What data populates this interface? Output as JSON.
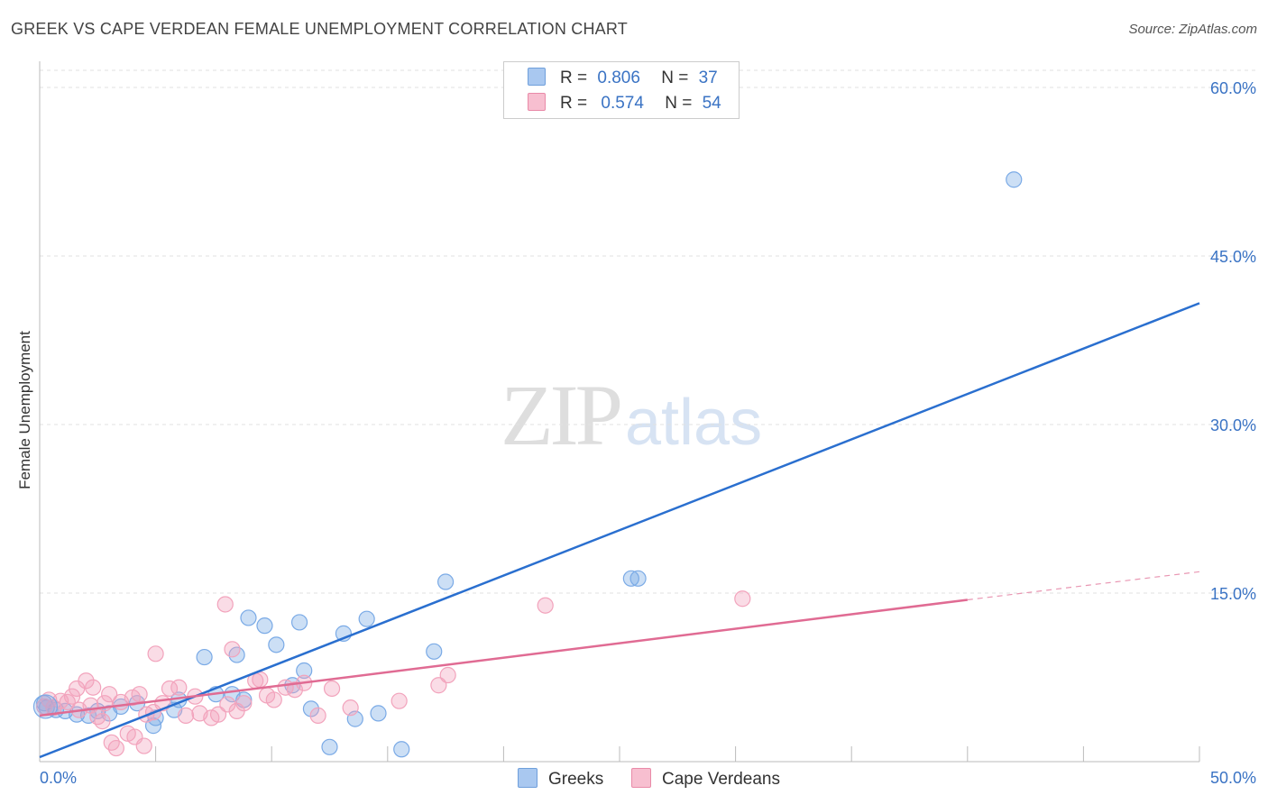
{
  "title": "GREEK VS CAPE VERDEAN FEMALE UNEMPLOYMENT CORRELATION CHART",
  "source": "Source: ZipAtlas.com",
  "watermark": {
    "zip": "ZIP",
    "atlas": "atlas"
  },
  "legend": {
    "rows": [
      {
        "r_label": "R =",
        "r_value": "0.806",
        "n_label": "N =",
        "n_value": "37",
        "color": "#a9c8f0",
        "border": "#6f9fdb"
      },
      {
        "r_label": "R =",
        "r_value": "0.574",
        "n_label": "N =",
        "n_value": "54",
        "color": "#f7bfd0",
        "border": "#e98aa8"
      }
    ]
  },
  "bottom_legend": [
    {
      "label": "Greeks",
      "color": "#a9c8f0",
      "border": "#6f9fdb"
    },
    {
      "label": "Cape Verdeans",
      "color": "#f7bfd0",
      "border": "#e98aa8"
    }
  ],
  "chart_data": {
    "type": "scatter",
    "title": "GREEK VS CAPE VERDEAN FEMALE UNEMPLOYMENT CORRELATION CHART",
    "xlabel": "",
    "ylabel": "Female Unemployment",
    "xlim": [
      0,
      50
    ],
    "ylim": [
      0,
      60
    ],
    "x_tick_labels": [
      "0.0%",
      "50.0%"
    ],
    "y_ticks": [
      15,
      30,
      45,
      60
    ],
    "y_tick_labels": [
      "15.0%",
      "30.0%",
      "45.0%",
      "60.0%"
    ],
    "grid": true,
    "series": [
      {
        "name": "Greeks",
        "color": "#7aaae6",
        "line_color": "#2a6fcf",
        "trend": {
          "x": [
            0,
            50
          ],
          "y": [
            0.4,
            40.8
          ]
        },
        "points": [
          [
            0.3,
            4.8
          ],
          [
            0.7,
            4.6
          ],
          [
            1.1,
            4.5
          ],
          [
            1.6,
            4.2
          ],
          [
            2.1,
            4.1
          ],
          [
            2.5,
            4.5
          ],
          [
            3.0,
            4.3
          ],
          [
            3.5,
            4.9
          ],
          [
            4.2,
            5.2
          ],
          [
            5.0,
            3.9
          ],
          [
            5.8,
            4.6
          ],
          [
            6.0,
            5.5
          ],
          [
            7.1,
            9.3
          ],
          [
            7.6,
            6.0
          ],
          [
            8.3,
            6.0
          ],
          [
            8.5,
            9.5
          ],
          [
            8.8,
            5.5
          ],
          [
            9.0,
            12.8
          ],
          [
            9.7,
            12.1
          ],
          [
            10.2,
            10.4
          ],
          [
            10.9,
            6.8
          ],
          [
            11.2,
            12.4
          ],
          [
            11.4,
            8.1
          ],
          [
            11.7,
            4.7
          ],
          [
            12.5,
            1.3
          ],
          [
            13.1,
            11.4
          ],
          [
            13.6,
            3.8
          ],
          [
            14.1,
            12.7
          ],
          [
            14.6,
            4.3
          ],
          [
            15.6,
            1.1
          ],
          [
            17.0,
            9.8
          ],
          [
            17.5,
            16.0
          ],
          [
            25.5,
            16.3
          ],
          [
            25.8,
            16.3
          ],
          [
            42.0,
            51.8
          ],
          [
            0.2,
            5.2
          ],
          [
            4.9,
            3.2
          ]
        ]
      },
      {
        "name": "Cape Verdeans",
        "color": "#f2a3bc",
        "line_color": "#e06b93",
        "trend": {
          "x": [
            0,
            40
          ],
          "y": [
            4.1,
            14.4
          ]
        },
        "trend_dashed": {
          "x": [
            40,
            50
          ],
          "y": [
            14.4,
            16.9
          ]
        },
        "points": [
          [
            0.2,
            4.9
          ],
          [
            0.4,
            5.5
          ],
          [
            0.6,
            4.8
          ],
          [
            0.9,
            5.4
          ],
          [
            1.2,
            5.3
          ],
          [
            1.4,
            5.8
          ],
          [
            1.6,
            6.5
          ],
          [
            1.7,
            4.6
          ],
          [
            2.0,
            7.2
          ],
          [
            2.2,
            5.0
          ],
          [
            2.3,
            6.6
          ],
          [
            2.5,
            4.0
          ],
          [
            2.7,
            3.6
          ],
          [
            2.8,
            5.2
          ],
          [
            3.0,
            6.0
          ],
          [
            3.1,
            1.7
          ],
          [
            3.3,
            1.2
          ],
          [
            3.5,
            5.3
          ],
          [
            3.8,
            2.5
          ],
          [
            4.0,
            5.7
          ],
          [
            4.1,
            2.2
          ],
          [
            4.3,
            6.0
          ],
          [
            4.5,
            1.4
          ],
          [
            4.6,
            4.2
          ],
          [
            4.9,
            4.4
          ],
          [
            5.0,
            9.6
          ],
          [
            5.3,
            5.2
          ],
          [
            5.6,
            6.5
          ],
          [
            6.0,
            6.6
          ],
          [
            6.3,
            4.1
          ],
          [
            6.7,
            5.8
          ],
          [
            6.9,
            4.3
          ],
          [
            7.4,
            3.9
          ],
          [
            7.7,
            4.2
          ],
          [
            8.1,
            5.1
          ],
          [
            8.3,
            10.0
          ],
          [
            8.5,
            4.5
          ],
          [
            8.8,
            5.2
          ],
          [
            9.3,
            7.2
          ],
          [
            9.5,
            7.3
          ],
          [
            9.8,
            5.9
          ],
          [
            10.1,
            5.5
          ],
          [
            10.6,
            6.6
          ],
          [
            11.0,
            6.4
          ],
          [
            11.4,
            7.0
          ],
          [
            12.0,
            4.1
          ],
          [
            12.6,
            6.5
          ],
          [
            13.4,
            4.8
          ],
          [
            15.5,
            5.4
          ],
          [
            17.2,
            6.8
          ],
          [
            17.6,
            7.7
          ],
          [
            8.0,
            14.0
          ],
          [
            21.8,
            13.9
          ],
          [
            30.3,
            14.5
          ]
        ]
      }
    ]
  }
}
